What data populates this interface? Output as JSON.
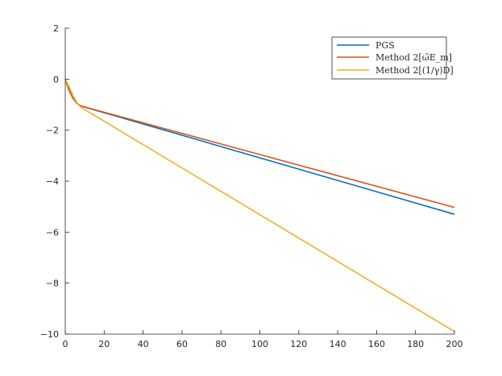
{
  "chart_data": {
    "type": "line",
    "title": "",
    "xlabel": "",
    "ylabel": "",
    "xlim": [
      0,
      200
    ],
    "ylim": [
      -10,
      2
    ],
    "xticks": [
      0,
      20,
      40,
      60,
      80,
      100,
      120,
      140,
      160,
      180,
      200
    ],
    "yticks": [
      -10,
      -8,
      -6,
      -4,
      -2,
      0,
      2
    ],
    "grid": false,
    "legend_position": "top-right",
    "series": [
      {
        "name": "PGS",
        "color": "#0072BD",
        "x": [
          0,
          2,
          4,
          6,
          8,
          200
        ],
        "y": [
          0,
          -0.45,
          -0.75,
          -0.95,
          -1.05,
          -5.3
        ]
      },
      {
        "name": "Method 2[ω̃E_m]",
        "color": "#D95319",
        "x": [
          0,
          2,
          4,
          6,
          8,
          200
        ],
        "y": [
          0,
          -0.45,
          -0.75,
          -0.95,
          -1.05,
          -5.03
        ]
      },
      {
        "name": "Method 2[(1/γ)D]",
        "color": "#EDB120",
        "x": [
          0,
          2,
          4,
          6,
          8,
          200
        ],
        "y": [
          0,
          -0.3,
          -0.65,
          -0.92,
          -1.1,
          -9.9
        ]
      }
    ]
  }
}
